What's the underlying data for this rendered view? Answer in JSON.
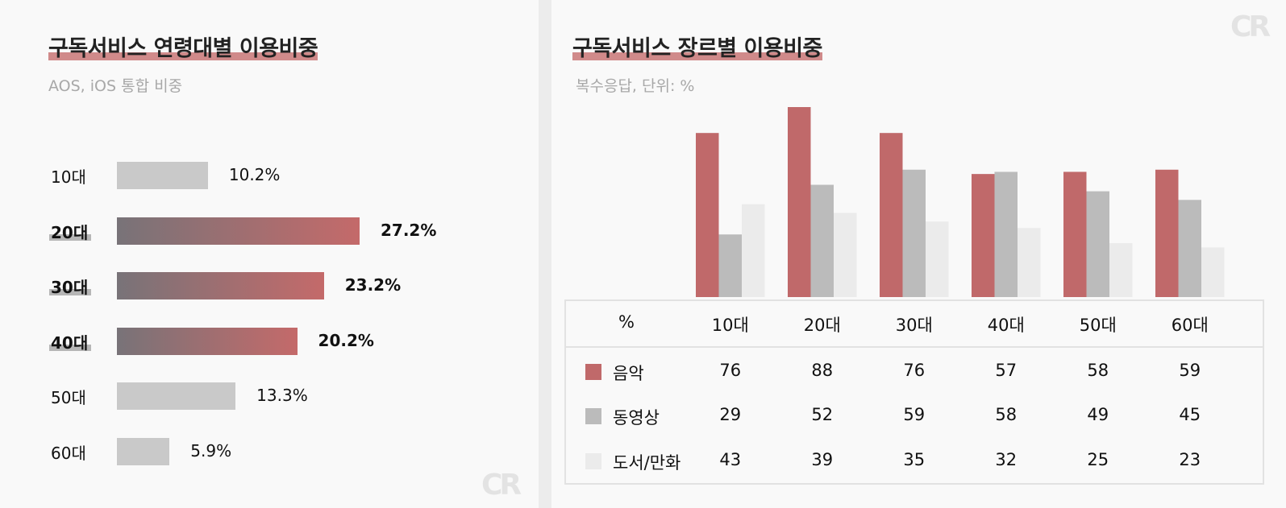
{
  "chart_data": [
    {
      "type": "bar",
      "orientation": "horizontal",
      "title": "구독서비스 연령대별 이용비중",
      "subtitle": "AOS, iOS 통합 비중",
      "categories": [
        "10대",
        "20대",
        "30대",
        "40대",
        "50대",
        "60대"
      ],
      "values": [
        10.2,
        27.2,
        23.2,
        20.2,
        13.3,
        5.9
      ],
      "value_labels": [
        "10.2%",
        "27.2%",
        "23.2%",
        "20.2%",
        "13.3%",
        "5.9%"
      ],
      "highlighted": [
        false,
        true,
        true,
        true,
        false,
        false
      ],
      "xlim": [
        0,
        30
      ],
      "colors": {
        "normal": "#c9c9c9",
        "highlight_start": "#787378",
        "highlight_end": "#c46a6a"
      },
      "grid": false
    },
    {
      "type": "bar",
      "title": "구독서비스 장르별 이용비중",
      "subtitle": "복수응답, 단위: %",
      "table_header": "%",
      "categories": [
        "10대",
        "20대",
        "30대",
        "40대",
        "50대",
        "60대"
      ],
      "series": [
        {
          "name": "음악",
          "values": [
            76,
            88,
            76,
            57,
            58,
            59
          ],
          "color": "#c0696a"
        },
        {
          "name": "동영상",
          "values": [
            29,
            52,
            59,
            58,
            49,
            45
          ],
          "color": "#bbbbbb"
        },
        {
          "name": "도서/만화",
          "values": [
            43,
            39,
            35,
            32,
            25,
            23
          ],
          "color": "#ebebeb"
        }
      ],
      "ylim": [
        0,
        88
      ],
      "grid": false,
      "legend": "table-below"
    }
  ],
  "logo": {
    "text": "CR",
    "icon": "cr-logo-icon"
  }
}
